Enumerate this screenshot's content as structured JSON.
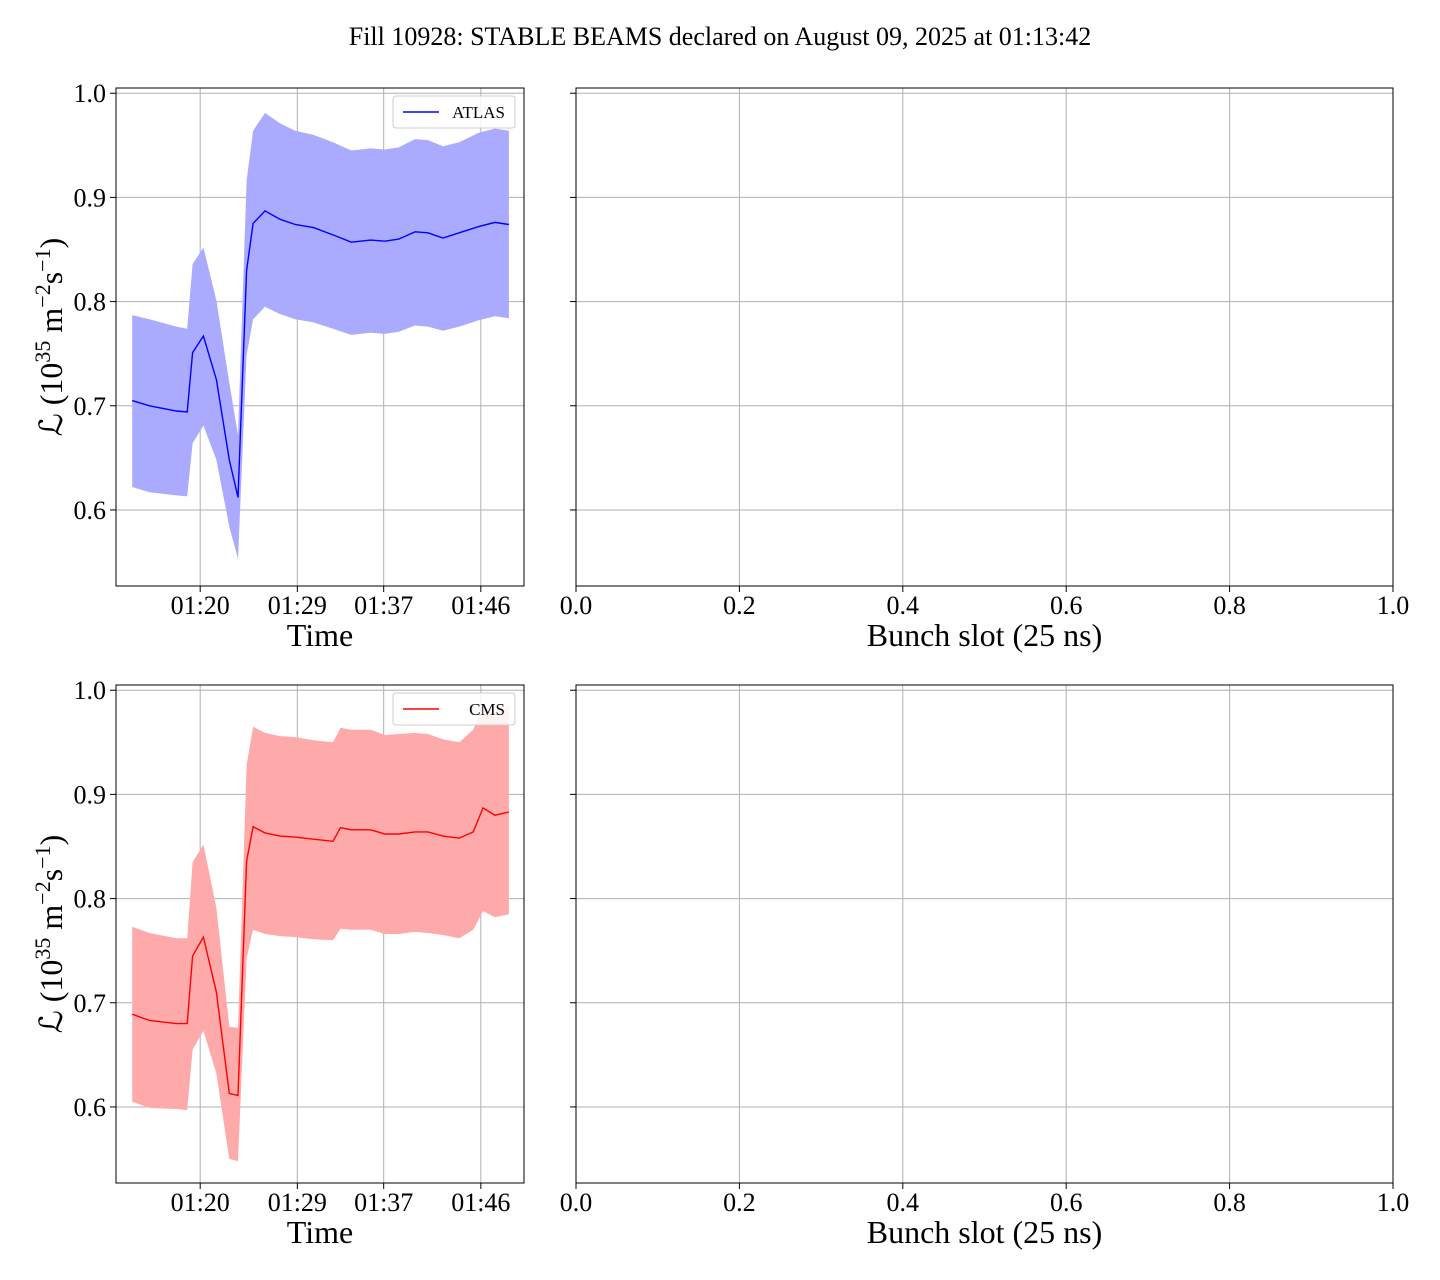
{
  "suptitle": "Fill 10928: STABLE BEAMS declared on August 09, 2025 at 01:13:42",
  "chart_data": [
    {
      "type": "line",
      "panel": "top-left",
      "series_name": "ATLAS",
      "color": "#0000ff",
      "band_color": "#aaaaff",
      "xlabel": "Time",
      "ylabel_prefix": "ℒ (10",
      "ylabel_exp1": "35",
      "ylabel_mid": " m",
      "ylabel_exp2": "−2",
      "ylabel_mid2": "s",
      "ylabel_exp3": "−1",
      "ylabel_suffix": ")",
      "x_ticks": [
        "01:20",
        "01:29",
        "01:37",
        "01:46"
      ],
      "y_ticks": [
        "0.6",
        "0.7",
        "0.8",
        "0.9",
        "1.0"
      ],
      "xlim_minutes": [
        72.2,
        110.0
      ],
      "ylim": [
        0.527,
        1.005
      ],
      "legend": "upper right",
      "grid": true,
      "minutes": [
        73.7,
        75.3,
        77.8,
        78.8,
        79.3,
        80.3,
        81.5,
        82.7,
        83.5,
        84.3,
        84.9,
        86.0,
        87.4,
        88.8,
        90.5,
        92.3,
        94.0,
        95.8,
        97.1,
        98.4,
        99.9,
        101.1,
        102.5,
        104.0,
        105.8,
        107.3,
        108.6
      ],
      "center": [
        0.705,
        0.7,
        0.695,
        0.694,
        0.751,
        0.767,
        0.725,
        0.648,
        0.612,
        0.83,
        0.875,
        0.887,
        0.879,
        0.874,
        0.871,
        0.864,
        0.857,
        0.859,
        0.858,
        0.86,
        0.867,
        0.866,
        0.861,
        0.866,
        0.872,
        0.876,
        0.874
      ],
      "upper": [
        0.787,
        0.783,
        0.776,
        0.774,
        0.836,
        0.852,
        0.801,
        0.722,
        0.672,
        0.916,
        0.964,
        0.981,
        0.971,
        0.964,
        0.96,
        0.953,
        0.945,
        0.947,
        0.946,
        0.948,
        0.956,
        0.955,
        0.949,
        0.953,
        0.962,
        0.966,
        0.964
      ],
      "lower": [
        0.622,
        0.617,
        0.614,
        0.613,
        0.664,
        0.681,
        0.648,
        0.584,
        0.553,
        0.749,
        0.783,
        0.795,
        0.788,
        0.783,
        0.78,
        0.774,
        0.768,
        0.77,
        0.769,
        0.771,
        0.777,
        0.776,
        0.772,
        0.776,
        0.782,
        0.786,
        0.784
      ]
    },
    {
      "type": "line",
      "panel": "top-right",
      "xlabel": "Bunch slot (25 ns)",
      "x_ticks": [
        "0.0",
        "0.2",
        "0.4",
        "0.6",
        "0.8",
        "1.0"
      ],
      "xlim": [
        0,
        1
      ],
      "ylim": [
        0.527,
        1.005
      ],
      "grid": true
    },
    {
      "type": "line",
      "panel": "bottom-left",
      "series_name": "CMS",
      "color": "#ff0000",
      "band_color": "#ffaaaa",
      "xlabel": "Time",
      "ylabel_prefix": "ℒ (10",
      "ylabel_exp1": "35",
      "ylabel_mid": " m",
      "ylabel_exp2": "−2",
      "ylabel_mid2": "s",
      "ylabel_exp3": "−1",
      "ylabel_suffix": ")",
      "x_ticks": [
        "01:20",
        "01:29",
        "01:37",
        "01:46"
      ],
      "y_ticks": [
        "0.6",
        "0.7",
        "0.8",
        "0.9",
        "1.0"
      ],
      "xlim_minutes": [
        72.2,
        110.0
      ],
      "ylim": [
        0.527,
        1.005
      ],
      "legend": "upper right",
      "grid": true,
      "minutes": [
        73.7,
        75.3,
        77.8,
        78.8,
        79.3,
        80.3,
        81.5,
        82.7,
        83.5,
        84.3,
        84.9,
        86.0,
        87.4,
        88.8,
        90.5,
        92.3,
        93.0,
        94.0,
        95.8,
        97.1,
        98.4,
        99.9,
        101.1,
        102.5,
        104.0,
        105.3,
        106.2,
        107.3,
        108.6
      ],
      "center": [
        0.689,
        0.683,
        0.68,
        0.68,
        0.745,
        0.763,
        0.71,
        0.613,
        0.611,
        0.836,
        0.869,
        0.863,
        0.86,
        0.859,
        0.857,
        0.855,
        0.868,
        0.866,
        0.866,
        0.862,
        0.862,
        0.864,
        0.864,
        0.86,
        0.858,
        0.864,
        0.887,
        0.88,
        0.883
      ],
      "upper": [
        0.773,
        0.767,
        0.762,
        0.762,
        0.835,
        0.852,
        0.791,
        0.677,
        0.676,
        0.928,
        0.965,
        0.959,
        0.956,
        0.955,
        0.952,
        0.95,
        0.964,
        0.962,
        0.962,
        0.957,
        0.958,
        0.959,
        0.958,
        0.953,
        0.95,
        0.962,
        0.985,
        0.975,
        0.985
      ],
      "lower": [
        0.605,
        0.599,
        0.598,
        0.597,
        0.655,
        0.673,
        0.632,
        0.55,
        0.548,
        0.743,
        0.77,
        0.766,
        0.764,
        0.763,
        0.761,
        0.76,
        0.771,
        0.77,
        0.77,
        0.766,
        0.766,
        0.768,
        0.767,
        0.765,
        0.762,
        0.77,
        0.788,
        0.782,
        0.785
      ]
    },
    {
      "type": "line",
      "panel": "bottom-right",
      "xlabel": "Bunch slot (25 ns)",
      "x_ticks": [
        "0.0",
        "0.2",
        "0.4",
        "0.6",
        "0.8",
        "1.0"
      ],
      "xlim": [
        0,
        1
      ],
      "ylim": [
        0.527,
        1.005
      ],
      "grid": true
    }
  ]
}
